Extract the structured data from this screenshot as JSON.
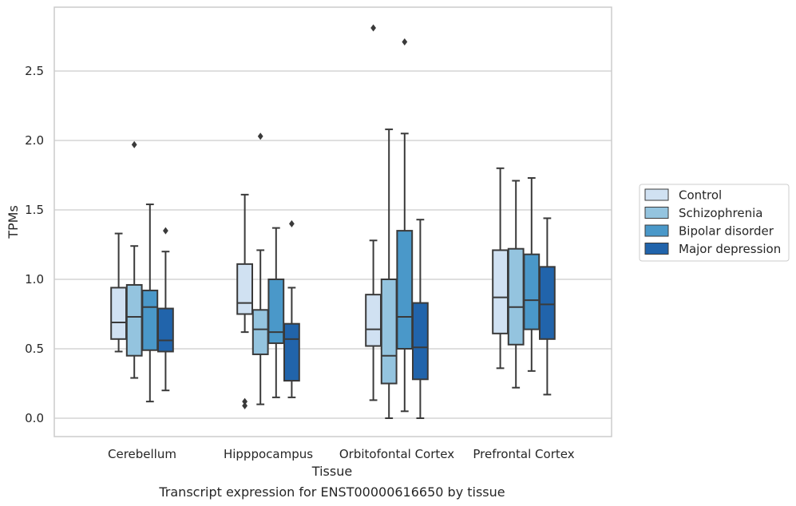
{
  "chart_data": {
    "type": "box",
    "xlabel": "Tissue",
    "ylabel": "TPMs",
    "caption": "Transcript expression for ENST00000616650 by tissue",
    "categories": [
      "Cerebellum",
      "Hipppocampus",
      "Orbitofontal Cortex",
      "Prefrontal Cortex"
    ],
    "ylim": [
      -0.13,
      2.93
    ],
    "yticks": [
      0.0,
      0.5,
      1.0,
      1.5,
      2.0,
      2.5
    ],
    "ytick_labels": [
      "0.0",
      "0.5",
      "1.0",
      "1.5",
      "2.0",
      "2.5"
    ],
    "grid": "horizontal",
    "legend_position": "right",
    "series": [
      {
        "name": "Control",
        "color": "#d0e1f2",
        "boxes": [
          {
            "whislo": 0.48,
            "q1": 0.57,
            "med": 0.69,
            "q3": 0.94,
            "whishi": 1.33,
            "fliers": []
          },
          {
            "whislo": 0.62,
            "q1": 0.75,
            "med": 0.83,
            "q3": 1.11,
            "whishi": 1.61,
            "fliers": [
              0.09,
              0.12
            ]
          },
          {
            "whislo": 0.13,
            "q1": 0.52,
            "med": 0.64,
            "q3": 0.89,
            "whishi": 1.28,
            "fliers": [
              2.81
            ]
          },
          {
            "whislo": 0.36,
            "q1": 0.61,
            "med": 0.87,
            "q3": 1.21,
            "whishi": 1.8,
            "fliers": []
          }
        ]
      },
      {
        "name": "Schizophrenia",
        "color": "#94c4df",
        "boxes": [
          {
            "whislo": 0.29,
            "q1": 0.45,
            "med": 0.73,
            "q3": 0.96,
            "whishi": 1.24,
            "fliers": [
              1.97
            ]
          },
          {
            "whislo": 0.1,
            "q1": 0.46,
            "med": 0.64,
            "q3": 0.78,
            "whishi": 1.21,
            "fliers": [
              2.03
            ]
          },
          {
            "whislo": 0.0,
            "q1": 0.25,
            "med": 0.45,
            "q3": 1.0,
            "whishi": 2.08,
            "fliers": []
          },
          {
            "whislo": 0.22,
            "q1": 0.53,
            "med": 0.8,
            "q3": 1.22,
            "whishi": 1.71,
            "fliers": []
          }
        ]
      },
      {
        "name": "Bipolar disorder",
        "color": "#4a98c9",
        "boxes": [
          {
            "whislo": 0.12,
            "q1": 0.49,
            "med": 0.8,
            "q3": 0.92,
            "whishi": 1.54,
            "fliers": []
          },
          {
            "whislo": 0.15,
            "q1": 0.54,
            "med": 0.62,
            "q3": 1.0,
            "whishi": 1.37,
            "fliers": []
          },
          {
            "whislo": 0.05,
            "q1": 0.5,
            "med": 0.73,
            "q3": 1.35,
            "whishi": 2.05,
            "fliers": [
              2.71
            ]
          },
          {
            "whislo": 0.34,
            "q1": 0.64,
            "med": 0.85,
            "q3": 1.18,
            "whishi": 1.73,
            "fliers": []
          }
        ]
      },
      {
        "name": "Major depression",
        "color": "#2164ab",
        "boxes": [
          {
            "whislo": 0.2,
            "q1": 0.48,
            "med": 0.56,
            "q3": 0.79,
            "whishi": 1.2,
            "fliers": [
              1.35
            ]
          },
          {
            "whislo": 0.15,
            "q1": 0.27,
            "med": 0.57,
            "q3": 0.68,
            "whishi": 0.94,
            "fliers": [
              1.4
            ]
          },
          {
            "whislo": 0.0,
            "q1": 0.28,
            "med": 0.51,
            "q3": 0.83,
            "whishi": 1.43,
            "fliers": []
          },
          {
            "whislo": 0.17,
            "q1": 0.57,
            "med": 0.82,
            "q3": 1.09,
            "whishi": 1.44,
            "fliers": []
          }
        ]
      }
    ]
  },
  "style": {
    "grid_color": "#cccccc",
    "frame_color": "#cccccc",
    "line_color": "#3a3a3a",
    "text_color": "#262626"
  }
}
